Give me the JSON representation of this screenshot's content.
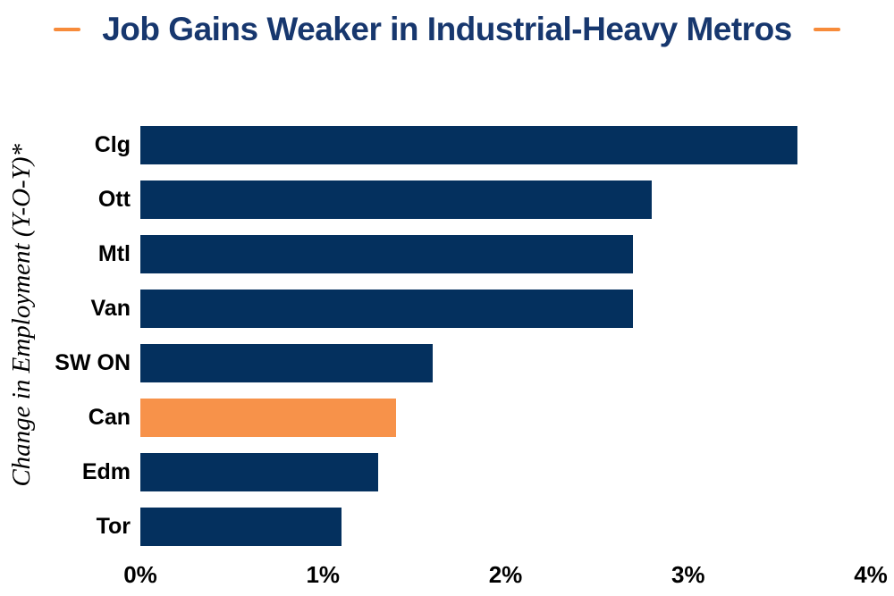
{
  "header": {
    "title": "Job Gains Weaker in Industrial-Heavy Metros"
  },
  "colors": {
    "title_navy": "#17376e",
    "accent_orange": "#f78b3a",
    "bar_navy": "#04305e",
    "bar_highlight_orange": "#f7924a",
    "text_black": "#000000",
    "background": "#ffffff"
  },
  "icons": {
    "left_dash": "accent-dash-icon",
    "right_dash": "accent-dash-icon"
  },
  "chart_data": {
    "type": "bar",
    "orientation": "horizontal",
    "title": "Job Gains Weaker in Industrial-Heavy Metros",
    "xlabel": "",
    "ylabel": "Change in Employment (Y-O-Y)*",
    "categories": [
      "Clg",
      "Ott",
      "Mtl",
      "Van",
      "SW ON",
      "Can",
      "Edm",
      "Tor"
    ],
    "values": [
      3.6,
      2.8,
      2.7,
      2.7,
      1.6,
      1.4,
      1.3,
      1.1
    ],
    "unit": "%",
    "highlight_category": "Can",
    "xlim": [
      0,
      4
    ],
    "xticks": [
      "0%",
      "1%",
      "2%",
      "3%",
      "4%"
    ],
    "grid": false,
    "legend": null
  }
}
